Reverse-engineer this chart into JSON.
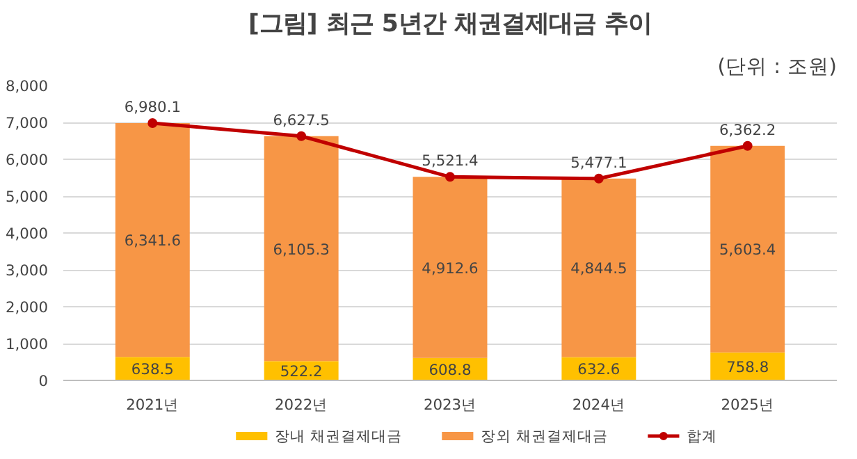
{
  "chart_data": {
    "type": "bar",
    "title": "[그림] 최근 5년간 채권결제대금 추이",
    "annotations": [
      "(단위 : 조원)"
    ],
    "categories": [
      "2021년",
      "2022년",
      "2023년",
      "2024년",
      "2025년"
    ],
    "stacked": true,
    "grid": "y",
    "legend": "bottom",
    "ylim": [
      0,
      8000
    ],
    "yticks": [
      0,
      {
        "value": 1000,
        "label": "1,000"
      },
      {
        "value": 2000,
        "label": "2,000"
      },
      {
        "value": 3000,
        "label": "3,000"
      },
      {
        "value": 4000,
        "label": "4,000"
      },
      {
        "value": 5000,
        "label": "5,000"
      },
      {
        "value": 6000,
        "label": "6,000"
      },
      {
        "value": 7000,
        "label": "7,000"
      },
      {
        "value": 8000,
        "label": "8,000"
      }
    ],
    "series": [
      {
        "name": "장내 채권결제대금",
        "color": "#ffc000",
        "values": [
          638.5,
          522.2,
          608.8,
          632.6,
          758.8
        ],
        "value_labels": [
          "638.5",
          "522.2",
          "608.8",
          "632.6",
          "758.8"
        ]
      },
      {
        "name": "장외 채권결제대금",
        "color": "#f79646",
        "values": [
          6341.6,
          6105.3,
          4912.6,
          4844.5,
          5603.4
        ],
        "value_labels": [
          "6,341.6",
          "6,105.3",
          "4,912.6",
          "4,844.5",
          "5,603.4"
        ]
      },
      {
        "name": "합계",
        "type": "line",
        "color": "#c00000",
        "marker": "circle",
        "values": [
          6980.1,
          6627.5,
          5521.4,
          5477.1,
          6362.2
        ],
        "value_labels": [
          "6,980.1",
          "6,627.5",
          "5,521.4",
          "5,477.1",
          "6,362.2"
        ]
      }
    ]
  }
}
